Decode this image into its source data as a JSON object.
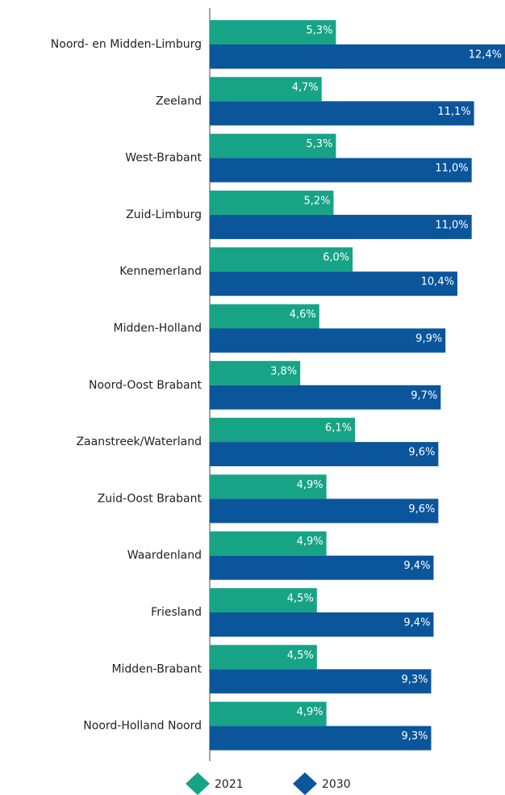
{
  "chart_data": {
    "type": "bar",
    "orientation": "horizontal",
    "categories": [
      "Noord- en Midden-Limburg",
      "Zeeland",
      "West-Brabant",
      "Zuid-Limburg",
      "Kennemerland",
      "Midden-Holland",
      "Noord-Oost Brabant",
      "Zaanstreek/Waterland",
      "Zuid-Oost Brabant",
      "Waardenland",
      "Friesland",
      "Midden-Brabant",
      "Noord-Holland Noord"
    ],
    "series": [
      {
        "name": "2021",
        "color": "#17a386",
        "values": [
          5.3,
          4.7,
          5.3,
          5.2,
          6.0,
          4.6,
          3.8,
          6.1,
          4.9,
          4.9,
          4.5,
          4.5,
          4.9
        ],
        "value_labels": [
          "5,3%",
          "4,7%",
          "5,3%",
          "5,2%",
          "6,0%",
          "4,6%",
          "3,8%",
          "6,1%",
          "4,9%",
          "4,9%",
          "4,5%",
          "4,5%",
          "4,9%"
        ]
      },
      {
        "name": "2030",
        "color": "#0b559b",
        "values": [
          12.4,
          11.1,
          11.0,
          11.0,
          10.4,
          9.9,
          9.7,
          9.6,
          9.6,
          9.4,
          9.4,
          9.3,
          9.3
        ],
        "value_labels": [
          "12,4%",
          "11,1%",
          "11,0%",
          "11,0%",
          "10,4%",
          "9,9%",
          "9,7%",
          "9,6%",
          "9,6%",
          "9,4%",
          "9,4%",
          "9,3%",
          "9,3%"
        ]
      }
    ],
    "legend": "bottom"
  }
}
